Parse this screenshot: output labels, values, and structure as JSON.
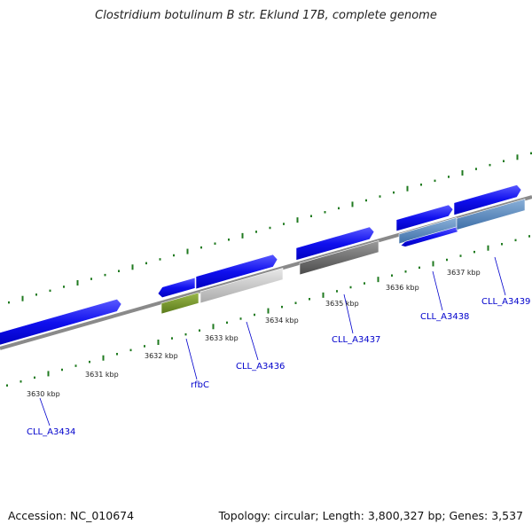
{
  "title": "Clostridium botulinum B str. Eklund 17B, complete genome",
  "footer": {
    "accession": "Accession: NC_010674",
    "topology": "Topology: circular; Length: 3,800,327 bp; Genes: 3,537"
  },
  "colors": {
    "backbone": "#8a8a8a",
    "tick": "#1f7a1f",
    "label": "#0000cc",
    "gene_default": "#1414e6"
  },
  "kbp_labels": [
    "3630 kbp",
    "3631 kbp",
    "3632 kbp",
    "3633 kbp",
    "3634 kbp",
    "3635 kbp",
    "3636 kbp",
    "3637 kbp"
  ],
  "gene_labels": [
    "CLL_A3434",
    "rfbC",
    "CLL_A3436",
    "CLL_A3437",
    "CLL_A3438",
    "CLL_A3439"
  ]
}
